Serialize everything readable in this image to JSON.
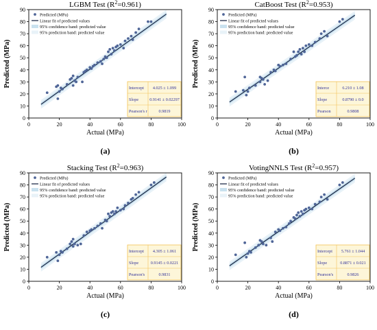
{
  "colors": {
    "point": "#4f6597",
    "line": "#1f2d4a",
    "confidence": "#c9e1ef",
    "prediction": "#e8f2f8",
    "stats_box": "#fdf6d9",
    "stats_border": "#f2c255",
    "stats_text": "#33339a"
  },
  "legend": {
    "predicted": "Predicted (MPa)",
    "fit": "Linear fit of predicted values",
    "confidence": "95% confidence band: predicted value",
    "prediction": "95% prediction band: predicted value"
  },
  "chart_data": [
    {
      "type": "scatter",
      "panel_label": "(a)",
      "title_prefix": "LGBM Test (R",
      "title_sup": "2",
      "title_suffix": "=0.961)",
      "xlabel": "Actual (MPa)",
      "ylabel": "Predicted (MPa)",
      "xlim": [
        0,
        100
      ],
      "ylim": [
        0,
        90
      ],
      "xticks": [
        0,
        20,
        40,
        60,
        80,
        100
      ],
      "yticks": [
        0,
        10,
        20,
        30,
        40,
        50,
        60,
        70,
        80,
        90
      ],
      "fit": {
        "intercept": 4.025,
        "slope": 0.9141,
        "x_range": [
          8,
          90
        ]
      },
      "stats": [
        {
          "label": "Intercept",
          "value": "4.025 ± 1.099"
        },
        {
          "label": "Slope",
          "value": "0.9141 ± 0.02297"
        },
        {
          "label": "Pearson's r",
          "value": "0.9819"
        }
      ],
      "points": [
        [
          12,
          21
        ],
        [
          18,
          26
        ],
        [
          19,
          27
        ],
        [
          19,
          16
        ],
        [
          20,
          22
        ],
        [
          21,
          25
        ],
        [
          22,
          24
        ],
        [
          25,
          28
        ],
        [
          27,
          32
        ],
        [
          28,
          33
        ],
        [
          29,
          35
        ],
        [
          29,
          27
        ],
        [
          30,
          31
        ],
        [
          31,
          30
        ],
        [
          32,
          34
        ],
        [
          35,
          30
        ],
        [
          36,
          38
        ],
        [
          37,
          39
        ],
        [
          38,
          40
        ],
        [
          40,
          42
        ],
        [
          41,
          41
        ],
        [
          42,
          43
        ],
        [
          43,
          44
        ],
        [
          45,
          46
        ],
        [
          47,
          47
        ],
        [
          48,
          45
        ],
        [
          49,
          49
        ],
        [
          50,
          51
        ],
        [
          51,
          50
        ],
        [
          52,
          55
        ],
        [
          53,
          57
        ],
        [
          54,
          53
        ],
        [
          55,
          58
        ],
        [
          56,
          56
        ],
        [
          57,
          59
        ],
        [
          58,
          60
        ],
        [
          60,
          61
        ],
        [
          62,
          58
        ],
        [
          63,
          64
        ],
        [
          65,
          66
        ],
        [
          67,
          68
        ],
        [
          68,
          65
        ],
        [
          70,
          71
        ],
        [
          72,
          74
        ],
        [
          78,
          80
        ],
        [
          80,
          80
        ]
      ]
    },
    {
      "type": "scatter",
      "panel_label": "(b)",
      "title_prefix": "CatBoost Test (R",
      "title_sup": "2",
      "title_suffix": "=0.953)",
      "xlabel": "Actual (MPa)",
      "ylabel": "Predicted (MPa)",
      "xlim": [
        0,
        100
      ],
      "ylim": [
        0,
        90
      ],
      "xticks": [
        0,
        20,
        40,
        60,
        80,
        100
      ],
      "yticks": [
        0,
        10,
        20,
        30,
        40,
        50,
        60,
        70,
        80,
        90
      ],
      "fit": {
        "intercept": 6.21,
        "slope": 0.879,
        "x_range": [
          8,
          90
        ]
      },
      "stats": [
        {
          "label": "Interce",
          "value": "6.210 ± 1.08"
        },
        {
          "label": "Slope",
          "value": "0.8790 ± 0.0"
        },
        {
          "label": "Pearson",
          "value": "0.9808"
        }
      ],
      "points": [
        [
          12,
          22
        ],
        [
          17,
          23
        ],
        [
          18,
          34
        ],
        [
          19,
          19
        ],
        [
          20,
          22
        ],
        [
          21,
          25
        ],
        [
          25,
          27
        ],
        [
          28,
          30
        ],
        [
          28,
          34
        ],
        [
          29,
          33
        ],
        [
          30,
          32
        ],
        [
          31,
          28
        ],
        [
          33,
          31
        ],
        [
          35,
          38
        ],
        [
          37,
          40
        ],
        [
          38,
          39
        ],
        [
          40,
          44
        ],
        [
          41,
          43
        ],
        [
          43,
          44
        ],
        [
          45,
          45
        ],
        [
          48,
          49
        ],
        [
          50,
          55
        ],
        [
          51,
          51
        ],
        [
          52,
          52
        ],
        [
          53,
          55
        ],
        [
          54,
          57
        ],
        [
          55,
          53
        ],
        [
          56,
          58
        ],
        [
          57,
          55
        ],
        [
          58,
          60
        ],
        [
          60,
          61
        ],
        [
          62,
          60
        ],
        [
          64,
          63
        ],
        [
          67,
          66
        ],
        [
          68,
          70
        ],
        [
          70,
          72
        ],
        [
          72,
          68
        ],
        [
          80,
          80
        ],
        [
          82,
          82
        ]
      ]
    },
    {
      "type": "scatter",
      "panel_label": "(c)",
      "title_prefix": "Stacking Test (R",
      "title_sup": "2",
      "title_suffix": "=0.963)",
      "xlabel": "Actual (MPa)",
      "ylabel": "Predicted (MPa)",
      "xlim": [
        0,
        100
      ],
      "ylim": [
        0,
        90
      ],
      "xticks": [
        0,
        20,
        40,
        60,
        80,
        100
      ],
      "yticks": [
        0,
        10,
        20,
        30,
        40,
        50,
        60,
        70,
        80,
        90
      ],
      "fit": {
        "intercept": 4.305,
        "slope": 0.9145,
        "x_range": [
          8,
          90
        ]
      },
      "stats": [
        {
          "label": "Intercept",
          "value": "4.305 ± 1.061"
        },
        {
          "label": "Slope",
          "value": "0.9145 ± 0.0221"
        },
        {
          "label": "Pearson's",
          "value": "0.9831"
        }
      ],
      "points": [
        [
          12,
          20
        ],
        [
          18,
          24
        ],
        [
          19,
          17
        ],
        [
          20,
          22
        ],
        [
          21,
          25
        ],
        [
          22,
          24
        ],
        [
          25,
          27
        ],
        [
          27,
          31
        ],
        [
          28,
          33
        ],
        [
          29,
          35
        ],
        [
          29,
          29
        ],
        [
          30,
          31
        ],
        [
          32,
          30
        ],
        [
          34,
          31
        ],
        [
          36,
          38
        ],
        [
          38,
          41
        ],
        [
          40,
          42
        ],
        [
          41,
          43
        ],
        [
          43,
          44
        ],
        [
          45,
          46
        ],
        [
          47,
          48
        ],
        [
          48,
          44
        ],
        [
          50,
          51
        ],
        [
          51,
          50
        ],
        [
          52,
          56
        ],
        [
          53,
          54
        ],
        [
          54,
          57
        ],
        [
          55,
          58
        ],
        [
          56,
          56
        ],
        [
          57,
          58
        ],
        [
          58,
          61
        ],
        [
          60,
          59
        ],
        [
          62,
          60
        ],
        [
          63,
          63
        ],
        [
          65,
          65
        ],
        [
          67,
          68
        ],
        [
          68,
          69
        ],
        [
          70,
          72
        ],
        [
          72,
          74
        ],
        [
          80,
          80
        ],
        [
          82,
          82
        ]
      ]
    },
    {
      "type": "scatter",
      "panel_label": "(d)",
      "title_prefix": "VotingNNLS Test (R",
      "title_sup": "2",
      "title_suffix": "=0.957)",
      "xlabel": "Actual (MPa)",
      "ylabel": "Predicted (MPa)",
      "xlim": [
        0,
        100
      ],
      "ylim": [
        0,
        90
      ],
      "xticks": [
        0,
        20,
        40,
        60,
        80,
        100
      ],
      "yticks": [
        0,
        10,
        20,
        30,
        40,
        50,
        60,
        70,
        80,
        90
      ],
      "fit": {
        "intercept": 5.761,
        "slope": 0.8871,
        "x_range": [
          8,
          90
        ]
      },
      "stats": [
        {
          "label": "Intercept",
          "value": "5.761 ± 1.044"
        },
        {
          "label": "Slope",
          "value": "0.8871 ± 0.021"
        },
        {
          "label": "Pearson's",
          "value": "0.9826"
        }
      ],
      "points": [
        [
          12,
          22
        ],
        [
          18,
          32
        ],
        [
          19,
          20
        ],
        [
          20,
          23
        ],
        [
          21,
          25
        ],
        [
          22,
          24
        ],
        [
          25,
          28
        ],
        [
          27,
          30
        ],
        [
          28,
          34
        ],
        [
          29,
          33
        ],
        [
          30,
          31
        ],
        [
          32,
          30
        ],
        [
          35,
          36
        ],
        [
          36,
          33
        ],
        [
          38,
          41
        ],
        [
          40,
          43
        ],
        [
          41,
          42
        ],
        [
          43,
          44
        ],
        [
          45,
          45
        ],
        [
          47,
          48
        ],
        [
          48,
          50
        ],
        [
          50,
          53
        ],
        [
          51,
          52
        ],
        [
          52,
          55
        ],
        [
          53,
          57
        ],
        [
          54,
          54
        ],
        [
          55,
          58
        ],
        [
          56,
          56
        ],
        [
          57,
          59
        ],
        [
          58,
          60
        ],
        [
          60,
          61
        ],
        [
          62,
          60
        ],
        [
          64,
          64
        ],
        [
          67,
          66
        ],
        [
          68,
          70
        ],
        [
          70,
          72
        ],
        [
          72,
          68
        ],
        [
          80,
          80
        ],
        [
          82,
          82
        ]
      ]
    }
  ]
}
